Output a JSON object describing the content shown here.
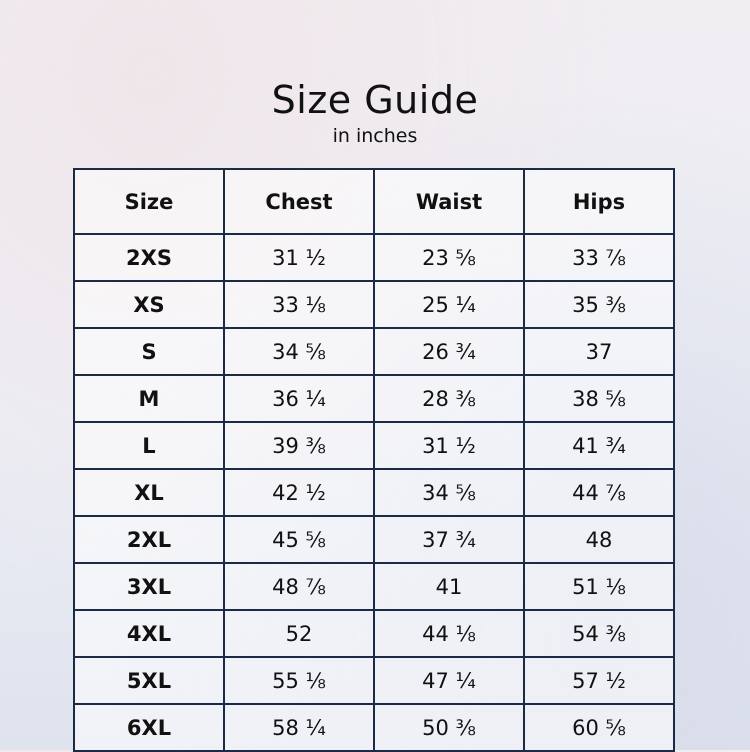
{
  "title": "Size Guide",
  "subtitle": "in inches",
  "table": {
    "headers": [
      "Size",
      "Chest",
      "Waist",
      "Hips"
    ],
    "rows": [
      [
        "2XS",
        "31 ½",
        "23 ⅝",
        "33 ⅞"
      ],
      [
        "XS",
        "33 ⅛",
        "25 ¼",
        "35 ⅜"
      ],
      [
        "S",
        "34 ⅝",
        "26 ¾",
        "37"
      ],
      [
        "M",
        "36 ¼",
        "28 ⅜",
        "38 ⅝"
      ],
      [
        "L",
        "39 ⅜",
        "31 ½",
        "41 ¾"
      ],
      [
        "XL",
        "42 ½",
        "34 ⅝",
        "44 ⅞"
      ],
      [
        "2XL",
        "45 ⅝",
        "37 ¾",
        "48"
      ],
      [
        "3XL",
        "48 ⅞",
        "41",
        "51 ⅛"
      ],
      [
        "4XL",
        "52",
        "44 ⅛",
        "54 ⅜"
      ],
      [
        "5XL",
        "55 ⅛",
        "47 ¼",
        "57 ½"
      ],
      [
        "6XL",
        "58 ¼",
        "50 ⅜",
        "60 ⅝"
      ]
    ]
  },
  "colors": {
    "border": "#1c2b45"
  }
}
